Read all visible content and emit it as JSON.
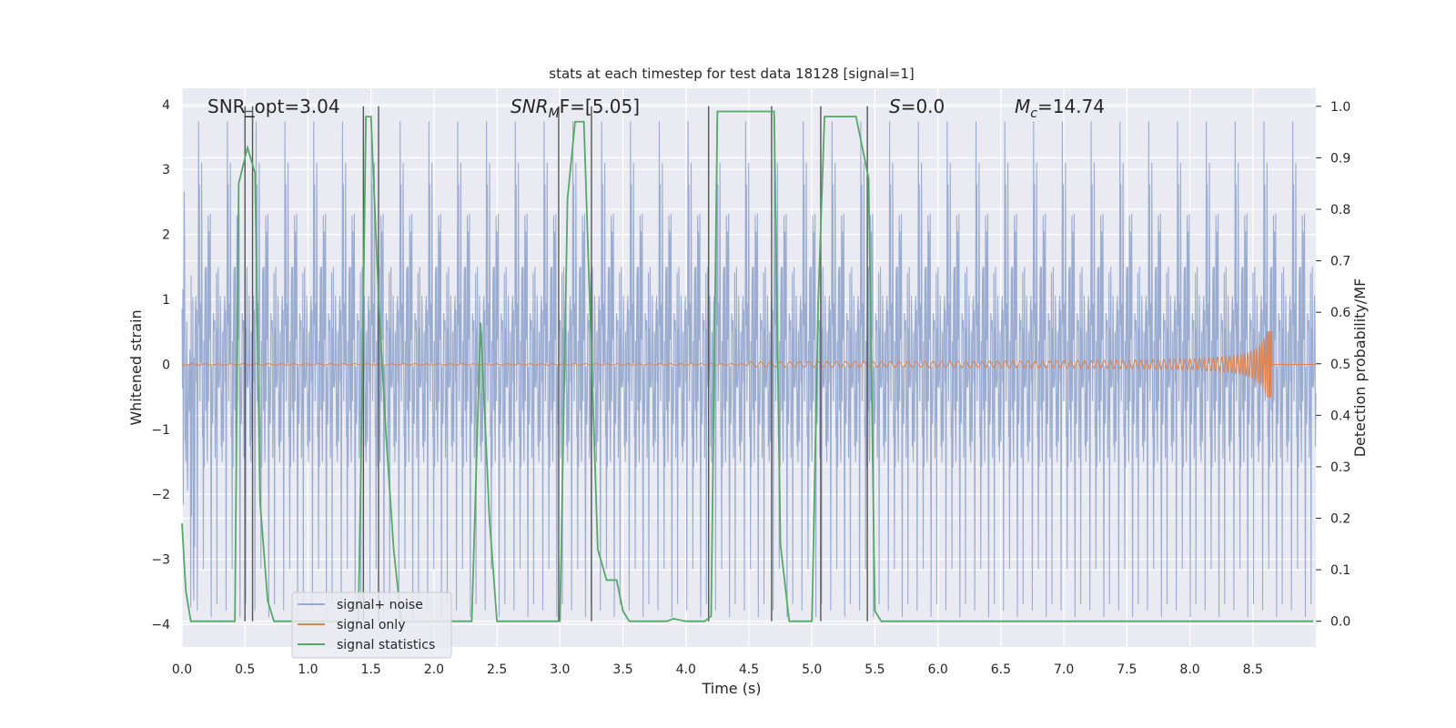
{
  "chart_data": {
    "type": "line",
    "title": "stats at each timestep for test data 18128 [signal=1]",
    "xlabel": "Time (s)",
    "ylabel": "Whitened strain",
    "ylabel_right": "Detection probability/MF",
    "xlim": [
      0,
      9.0
    ],
    "ylim": [
      -4.35,
      4.25
    ],
    "ylim_right": [
      -0.05,
      1.035
    ],
    "xticks": [
      "0.0",
      "0.5",
      "1.0",
      "1.5",
      "2.0",
      "2.5",
      "3.0",
      "3.5",
      "4.0",
      "4.5",
      "5.0",
      "5.5",
      "6.0",
      "6.5",
      "7.0",
      "7.5",
      "8.0",
      "8.5"
    ],
    "xtick_values": [
      0,
      0.5,
      1,
      1.5,
      2,
      2.5,
      3,
      3.5,
      4,
      4.5,
      5,
      5.5,
      6,
      6.5,
      7,
      7.5,
      8,
      8.5
    ],
    "yticks": [
      "4",
      "3",
      "2",
      "1",
      "0",
      "−1",
      "−2",
      "−3",
      "−4"
    ],
    "ytick_values": [
      4,
      3,
      2,
      1,
      0,
      -1,
      -2,
      -3,
      -4
    ],
    "yticks_right": [
      "1.0",
      "0.9",
      "0.8",
      "0.7",
      "0.6",
      "0.5",
      "0.4",
      "0.3",
      "0.2",
      "0.1",
      "0.0"
    ],
    "ytick_right_values": [
      1.0,
      0.9,
      0.8,
      0.7,
      0.6,
      0.5,
      0.4,
      0.3,
      0.2,
      0.1,
      0.0
    ],
    "grid": true,
    "legend_position": "lower-left",
    "annotations": {
      "snr_opt": "SNR_opt=3.04",
      "snr_mf_main": "SNR",
      "snr_mf_sub": "M",
      "snr_mf_rest": "F=[5.05]",
      "s_main": "S",
      "s_rest": "=0.0",
      "mc_main": "M",
      "mc_sub": "c",
      "mc_rest": "=14.74"
    },
    "series": [
      {
        "name": "signal+ noise",
        "color": "#97A9CF",
        "noise_amplitude": 1.5,
        "peak_range": [
          -4.0,
          3.9
        ]
      },
      {
        "name": "signal only",
        "color": "#DD8452",
        "chirp_end_time": 8.65,
        "chirp_peak": 0.5
      },
      {
        "name": "signal statistics",
        "color": "#55A868",
        "axis": "right",
        "x": [
          0.0,
          0.03,
          0.07,
          0.15,
          0.42,
          0.45,
          0.49,
          0.52,
          0.58,
          0.62,
          0.68,
          0.73,
          1.4,
          1.43,
          1.46,
          1.5,
          1.56,
          1.62,
          1.68,
          1.74,
          2.2,
          2.3,
          2.37,
          2.44,
          2.5,
          3.0,
          3.06,
          3.12,
          3.19,
          3.3,
          3.37,
          3.45,
          3.5,
          3.55,
          3.62,
          3.85,
          3.9,
          4.0,
          4.15,
          4.2,
          4.25,
          4.7,
          4.75,
          4.82,
          5.0,
          5.05,
          5.1,
          5.35,
          5.45,
          5.5,
          5.55,
          8.98
        ],
        "y": [
          0.19,
          0.06,
          0.0,
          0.0,
          0.0,
          0.85,
          0.89,
          0.92,
          0.87,
          0.23,
          0.04,
          0.0,
          0.0,
          0.45,
          0.98,
          0.98,
          0.63,
          0.36,
          0.14,
          0.0,
          0.0,
          0.0,
          0.58,
          0.2,
          0.0,
          0.0,
          0.82,
          0.97,
          0.97,
          0.14,
          0.08,
          0.08,
          0.02,
          0.0,
          0.0,
          0.0,
          0.005,
          0.0,
          0.0,
          0.01,
          0.99,
          0.99,
          0.15,
          0.0,
          0.0,
          0.62,
          0.98,
          0.98,
          0.86,
          0.02,
          0.0,
          0.0
        ]
      }
    ],
    "vertical_markers": {
      "color": "#555555",
      "x": [
        0.5,
        0.56,
        1.44,
        1.56,
        2.99,
        3.25,
        4.18,
        4.68,
        5.07,
        5.44
      ]
    }
  }
}
